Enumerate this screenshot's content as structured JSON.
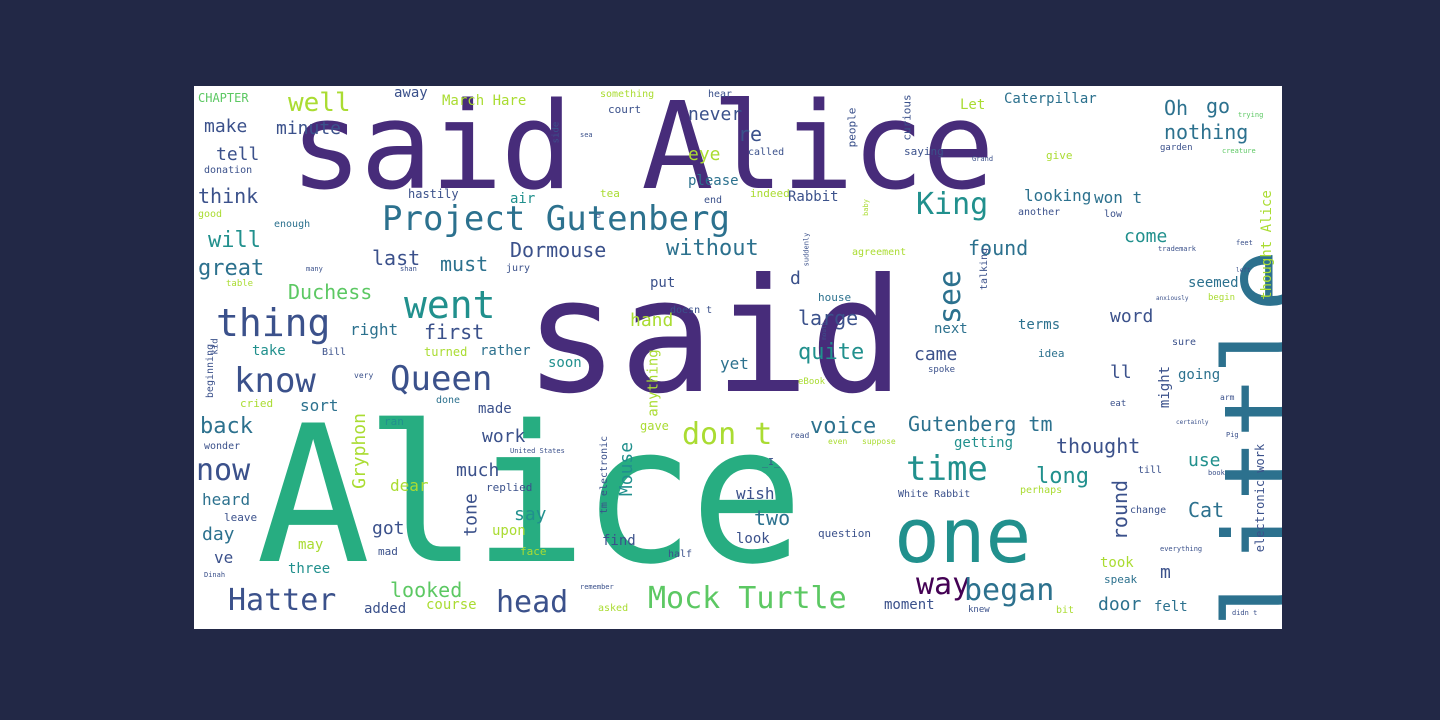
{
  "words": {
    "said_big": "said",
    "said_alice": "said Alice",
    "alice_big": "Alice",
    "little": "little",
    "one": "one",
    "project_gutenberg": "Project Gutenberg",
    "king": "King",
    "well": "well",
    "make": "make",
    "minute": "minute",
    "tell": "tell",
    "think": "think",
    "will": "will",
    "great": "great",
    "last": "last",
    "must": "must",
    "dormouse": "Dormouse",
    "without": "without",
    "duchess": "Duchess",
    "went": "went",
    "thing": "thing",
    "right": "right",
    "first": "first",
    "take": "take",
    "know": "know",
    "queen": "Queen",
    "sort": "sort",
    "back": "back",
    "work": "work",
    "much": "much",
    "now": "now",
    "gryphon": "Gryphon",
    "heard": "heard",
    "say": "say",
    "day": "day",
    "got": "got",
    "ve": "ve",
    "may": "may",
    "three": "three",
    "looked": "looked",
    "hatter": "Hatter",
    "added": "added",
    "course": "course",
    "head": "head",
    "mock_turtle": "Mock Turtle",
    "moment": "moment",
    "way": "way",
    "began": "began",
    "door": "door",
    "felt": "felt",
    "m": "m",
    "time": "time",
    "long": "long",
    "round": "round",
    "two": "two",
    "wish": "wish",
    "cat": "Cat",
    "took": "took",
    "voice": "voice",
    "gutenberg_tm": "Gutenberg tm",
    "thought": "thought",
    "use": "use",
    "getting": "getting",
    "dont": "don t",
    "quite": "quite",
    "came": "came",
    "next": "next",
    "terms": "terms",
    "word": "word",
    "going": "going",
    "ll": "ll",
    "might": "might",
    "found": "found",
    "see": "see",
    "come": "come",
    "seemed": "seemed",
    "large": "large",
    "hand": "hand",
    "put": "put",
    "rather": "rather",
    "soon": "soon",
    "yet": "yet",
    "d": "d",
    "mouse": "Mouse",
    "tone": "tone",
    "upon": "upon",
    "dear": "dear",
    "never": "never",
    "re": "re",
    "eye": "eye",
    "please": "please",
    "rabbit": "Rabbit",
    "looking": "looking",
    "wont": "won t",
    "oh": "Oh",
    "go": "go",
    "nothing": "nothing",
    "caterpillar": "Caterpillar",
    "let": "Let",
    "march_hare": "March Hare",
    "away": "away",
    "chapter": "CHAPTER",
    "anything": "anything",
    "thought_alice": "thought Alice",
    "electronic_work": "electronic work",
    "white_rabbit": "White Rabbit",
    "hastily": "hastily",
    "air": "air",
    "tea": "tea",
    "indeed": "indeed",
    "end": "end",
    "made": "made",
    "turned": "turned",
    "done": "done",
    "ran": "ran",
    "replied": "replied",
    "find": "find",
    "look": "look",
    "half": "half",
    "question": "question",
    "face": "face",
    "mad": "mad",
    "leave": "leave",
    "bill": "Bill",
    "cried": "cried",
    "beginning": "beginning",
    "wonder": "wonder",
    "court": "court",
    "something": "something",
    "hear": "hear",
    "people": "people",
    "curious": "curious",
    "saying": "saying",
    "called": "called",
    "side": "side",
    "garden": "garden",
    "creature": "creature",
    "trying": "trying",
    "give": "give",
    "enough": "enough",
    "good": "good",
    "donation": "donation",
    "another": "another",
    "low": "low",
    "house": "house",
    "doesnt": "doesn t",
    "talking": "talking",
    "idea": "idea",
    "spoke": "spoke",
    "ebook": "eBook",
    "sure": "sure",
    "begin": "begin",
    "change": "change",
    "perhaps": "perhaps",
    "speak": "speak",
    "knew": "knew",
    "bit": "bit",
    "didnt": "didn t",
    "gave": "gave",
    "tm_electronic": "tm electronic",
    "united_states": "United States",
    "remember": "remember",
    "asked": "asked",
    "agreement": "agreement",
    "jury": "jury",
    "table": "table",
    "baby": "baby",
    "suddenly": "suddenly",
    "trademark": "trademark",
    "feet": "feet",
    "left": "left",
    "anxiously": "anxiously",
    "certainly": "certainly",
    "eat": "eat",
    "arm": "arm",
    "till": "till",
    "everything": "everything",
    "book": "book",
    "pig": "Pig",
    "grand": "Grand",
    "kid": "kid",
    "i": "_I_",
    "read": "read",
    "even": "even",
    "suppose": "suppose",
    "dinah": "Dinah",
    "sea": "sea",
    "many": "many",
    "u": "u",
    "shan": "shan",
    "very": "very",
    "mouth": "mouth"
  },
  "colors": {
    "background": "#222846",
    "canvas": "#ffffff",
    "palette": [
      "#440154",
      "#472c7a",
      "#3b518b",
      "#2c718e",
      "#21908d",
      "#27ad81",
      "#5cc863",
      "#aadc32",
      "#fde725"
    ]
  }
}
